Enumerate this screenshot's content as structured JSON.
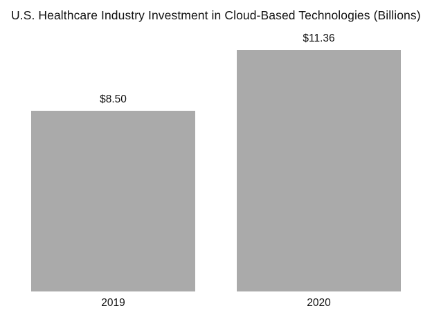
{
  "chart_data": {
    "type": "bar",
    "title": "U.S. Healthcare Industry Investment in Cloud-Based Technologies (Billions)",
    "categories": [
      "2019",
      "2020"
    ],
    "values": [
      8.5,
      11.36
    ],
    "value_labels": [
      "$8.50",
      "$11.36"
    ],
    "xlabel": "",
    "ylabel": "",
    "ylim": [
      0,
      11.36
    ],
    "grid": "off",
    "legend": "none",
    "axes_visible": false,
    "bar_color": "#aaaaaa",
    "text_color": "#111111",
    "background_color": "#ffffff"
  }
}
